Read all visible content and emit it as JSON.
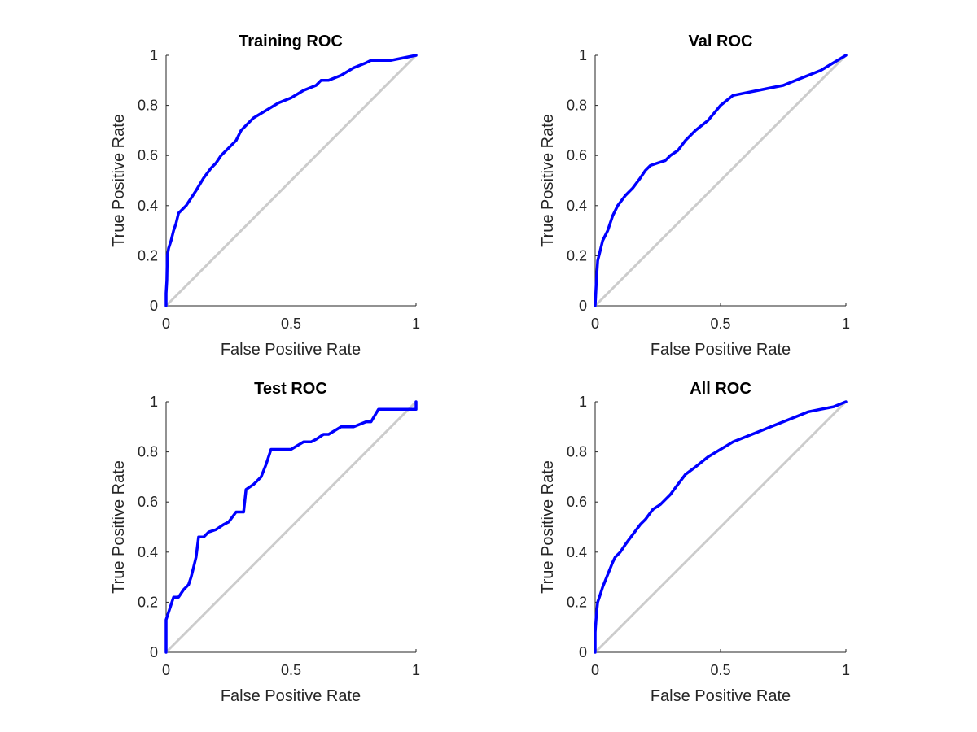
{
  "colors": {
    "roc_curve": "#0000ff",
    "diagonal": "#cccccc",
    "axis": "#262626",
    "background": "#ffffff"
  },
  "chart_data": [
    {
      "type": "line",
      "title": "Training ROC",
      "xlabel": "False Positive Rate",
      "ylabel": "True Positive Rate",
      "xlim": [
        0,
        1
      ],
      "ylim": [
        0,
        1
      ],
      "xticks": [
        "0",
        "0.5",
        "1"
      ],
      "yticks": [
        "0",
        "0.2",
        "0.4",
        "0.6",
        "0.8",
        "1"
      ],
      "grid": false,
      "diagonal": [
        [
          0,
          0
        ],
        [
          1,
          1
        ]
      ],
      "series": [
        {
          "x": [
            0,
            0,
            0.003,
            0.005,
            0.01,
            0.02,
            0.03,
            0.04,
            0.05,
            0.06,
            0.08,
            0.1,
            0.12,
            0.15,
            0.18,
            0.2,
            0.22,
            0.25,
            0.28,
            0.3,
            0.32,
            0.35,
            0.4,
            0.45,
            0.5,
            0.55,
            0.6,
            0.62,
            0.65,
            0.7,
            0.75,
            0.8,
            0.82,
            0.9,
            0.95,
            1
          ],
          "y": [
            0,
            0.05,
            0.1,
            0.2,
            0.23,
            0.26,
            0.3,
            0.33,
            0.37,
            0.38,
            0.4,
            0.43,
            0.46,
            0.51,
            0.55,
            0.57,
            0.6,
            0.63,
            0.66,
            0.7,
            0.72,
            0.75,
            0.78,
            0.81,
            0.83,
            0.86,
            0.88,
            0.9,
            0.9,
            0.92,
            0.95,
            0.97,
            0.98,
            0.98,
            0.99,
            1
          ]
        }
      ]
    },
    {
      "type": "line",
      "title": "Val ROC",
      "xlabel": "False Positive Rate",
      "ylabel": "True Positive Rate",
      "xlim": [
        0,
        1
      ],
      "ylim": [
        0,
        1
      ],
      "xticks": [
        "0",
        "0.5",
        "1"
      ],
      "yticks": [
        "0",
        "0.2",
        "0.4",
        "0.6",
        "0.8",
        "1"
      ],
      "grid": false,
      "diagonal": [
        [
          0,
          0
        ],
        [
          1,
          1
        ]
      ],
      "series": [
        {
          "x": [
            0,
            0.005,
            0.01,
            0.02,
            0.03,
            0.05,
            0.07,
            0.09,
            0.12,
            0.15,
            0.18,
            0.2,
            0.22,
            0.25,
            0.28,
            0.3,
            0.33,
            0.36,
            0.4,
            0.45,
            0.5,
            0.55,
            0.6,
            0.65,
            0.7,
            0.75,
            0.8,
            0.85,
            0.9,
            0.95,
            1
          ],
          "y": [
            0,
            0.1,
            0.18,
            0.22,
            0.26,
            0.3,
            0.36,
            0.4,
            0.44,
            0.47,
            0.51,
            0.54,
            0.56,
            0.57,
            0.58,
            0.6,
            0.62,
            0.66,
            0.7,
            0.74,
            0.8,
            0.84,
            0.85,
            0.86,
            0.87,
            0.88,
            0.9,
            0.92,
            0.94,
            0.97,
            1
          ]
        }
      ]
    },
    {
      "type": "line",
      "title": "Test ROC",
      "xlabel": "False Positive Rate",
      "ylabel": "True Positive Rate",
      "xlim": [
        0,
        1
      ],
      "ylim": [
        0,
        1
      ],
      "xticks": [
        "0",
        "0.5",
        "1"
      ],
      "yticks": [
        "0",
        "0.2",
        "0.4",
        "0.6",
        "0.8",
        "1"
      ],
      "grid": false,
      "diagonal": [
        [
          0,
          0
        ],
        [
          1,
          1
        ]
      ],
      "series": [
        {
          "x": [
            0,
            0,
            0.01,
            0.02,
            0.03,
            0.05,
            0.07,
            0.09,
            0.1,
            0.11,
            0.12,
            0.13,
            0.15,
            0.17,
            0.2,
            0.23,
            0.25,
            0.28,
            0.31,
            0.32,
            0.35,
            0.38,
            0.4,
            0.42,
            0.45,
            0.5,
            0.55,
            0.58,
            0.6,
            0.63,
            0.65,
            0.7,
            0.75,
            0.8,
            0.82,
            0.85,
            0.9,
            0.95,
            1,
            1
          ],
          "y": [
            0,
            0.13,
            0.16,
            0.19,
            0.22,
            0.22,
            0.25,
            0.27,
            0.3,
            0.34,
            0.38,
            0.46,
            0.46,
            0.48,
            0.49,
            0.51,
            0.52,
            0.56,
            0.56,
            0.65,
            0.67,
            0.7,
            0.75,
            0.81,
            0.81,
            0.81,
            0.84,
            0.84,
            0.85,
            0.87,
            0.87,
            0.9,
            0.9,
            0.92,
            0.92,
            0.97,
            0.97,
            0.97,
            0.97,
            1
          ]
        }
      ]
    },
    {
      "type": "line",
      "title": "All ROC",
      "xlabel": "False Positive Rate",
      "ylabel": "True Positive Rate",
      "xlim": [
        0,
        1
      ],
      "ylim": [
        0,
        1
      ],
      "xticks": [
        "0",
        "0.5",
        "1"
      ],
      "yticks": [
        "0",
        "0.2",
        "0.4",
        "0.6",
        "0.8",
        "1"
      ],
      "grid": false,
      "diagonal": [
        [
          0,
          0
        ],
        [
          1,
          1
        ]
      ],
      "series": [
        {
          "x": [
            0,
            0,
            0.005,
            0.01,
            0.02,
            0.03,
            0.05,
            0.07,
            0.08,
            0.1,
            0.12,
            0.15,
            0.18,
            0.2,
            0.23,
            0.26,
            0.3,
            0.33,
            0.36,
            0.4,
            0.45,
            0.5,
            0.55,
            0.6,
            0.65,
            0.7,
            0.75,
            0.8,
            0.85,
            0.9,
            0.95,
            1
          ],
          "y": [
            0,
            0.08,
            0.15,
            0.2,
            0.23,
            0.26,
            0.31,
            0.36,
            0.38,
            0.4,
            0.43,
            0.47,
            0.51,
            0.53,
            0.57,
            0.59,
            0.63,
            0.67,
            0.71,
            0.74,
            0.78,
            0.81,
            0.84,
            0.86,
            0.88,
            0.9,
            0.92,
            0.94,
            0.96,
            0.97,
            0.98,
            1
          ]
        }
      ]
    }
  ]
}
